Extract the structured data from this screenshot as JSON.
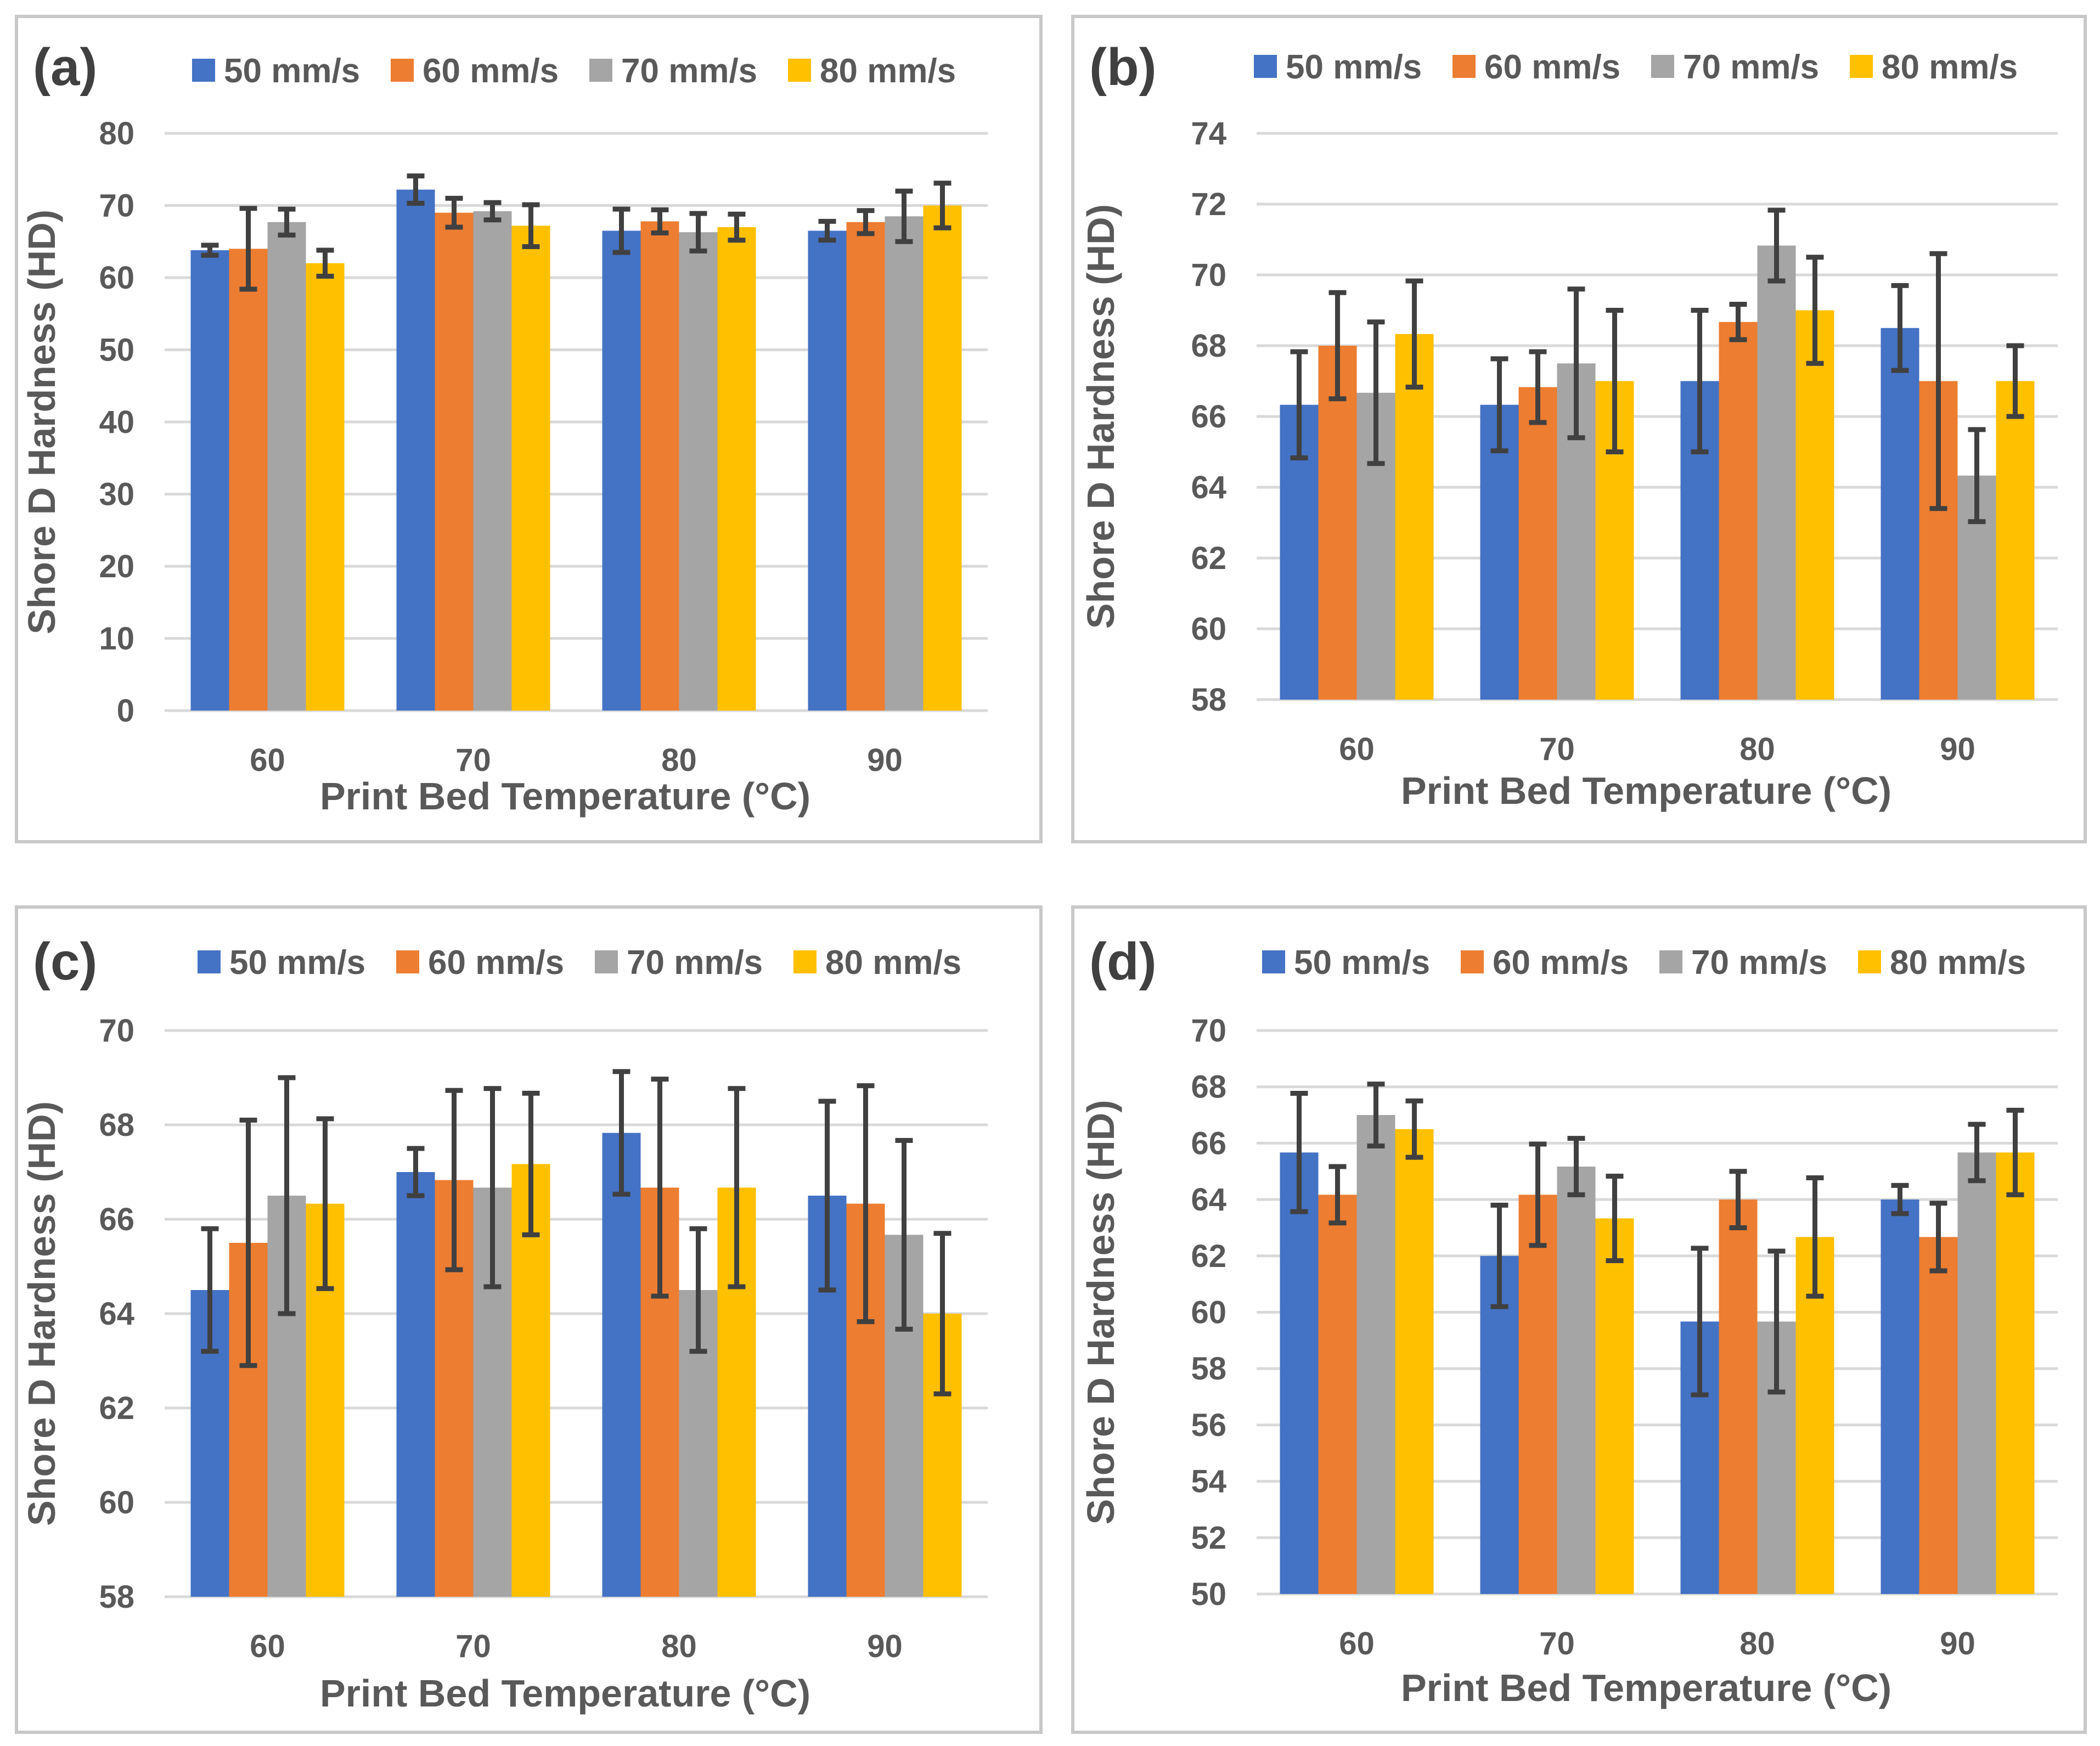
{
  "chart_data": [
    {
      "type": "bar",
      "panel": "(a)",
      "xlabel": "Print Bed Temperature (°C)",
      "ylabel": "Shore D Hardness (HD)",
      "categories": [
        "60",
        "70",
        "80",
        "90"
      ],
      "ylim": [
        0,
        80
      ],
      "yticks": [
        0,
        10,
        20,
        30,
        40,
        50,
        60,
        70,
        80
      ],
      "grid": true,
      "legend": "top",
      "series": [
        {
          "name": "50 mm/s",
          "color": "#4472C4",
          "values": [
            63.8,
            72.2,
            66.5,
            66.5
          ],
          "errors": [
            0.7,
            1.9,
            3.0,
            1.3
          ]
        },
        {
          "name": "60 mm/s",
          "color": "#ED7D31",
          "values": [
            64.0,
            69.0,
            67.8,
            67.7
          ],
          "errors": [
            5.6,
            2.0,
            1.6,
            1.6
          ]
        },
        {
          "name": "70 mm/s",
          "color": "#A5A5A5",
          "values": [
            67.7,
            69.2,
            66.3,
            68.5
          ],
          "errors": [
            1.8,
            1.2,
            2.6,
            3.5
          ]
        },
        {
          "name": "80 mm/s",
          "color": "#FFC000",
          "values": [
            62.0,
            67.2,
            67.0,
            70.0
          ],
          "errors": [
            1.8,
            2.9,
            1.8,
            3.1
          ]
        }
      ]
    },
    {
      "type": "bar",
      "panel": "(b)",
      "xlabel": "Print Bed Temperature (°C)",
      "ylabel": "Shore D Hardness (HD)",
      "categories": [
        "60",
        "70",
        "80",
        "90"
      ],
      "ylim": [
        58,
        74
      ],
      "yticks": [
        58,
        60,
        62,
        64,
        66,
        68,
        70,
        72,
        74
      ],
      "grid": true,
      "legend": "top",
      "series": [
        {
          "name": "50 mm/s",
          "color": "#4472C4",
          "values": [
            66.33,
            66.33,
            67.0,
            68.5
          ],
          "errors": [
            1.5,
            1.3,
            2.0,
            1.2
          ]
        },
        {
          "name": "60 mm/s",
          "color": "#ED7D31",
          "values": [
            68.0,
            66.83,
            68.67,
            67.0
          ],
          "errors": [
            1.5,
            1.0,
            0.5,
            3.6
          ]
        },
        {
          "name": "70 mm/s",
          "color": "#A5A5A5",
          "values": [
            66.67,
            67.5,
            70.83,
            64.33
          ],
          "errors": [
            2.0,
            2.1,
            1.0,
            1.3
          ]
        },
        {
          "name": "80 mm/s",
          "color": "#FFC000",
          "values": [
            68.33,
            67.0,
            69.0,
            67.0
          ],
          "errors": [
            1.5,
            2.0,
            1.5,
            1.0
          ]
        }
      ]
    },
    {
      "type": "bar",
      "panel": "(c)",
      "xlabel": "Print Bed Temperature (°C)",
      "ylabel": "Shore D Hardness (HD)",
      "categories": [
        "60",
        "70",
        "80",
        "90"
      ],
      "ylim": [
        58,
        70
      ],
      "yticks": [
        58,
        60,
        62,
        64,
        66,
        68,
        70
      ],
      "grid": true,
      "legend": "top",
      "series": [
        {
          "name": "50 mm/s",
          "color": "#4472C4",
          "values": [
            64.5,
            67.0,
            67.83,
            66.5
          ],
          "errors": [
            1.3,
            0.5,
            1.3,
            2.0
          ]
        },
        {
          "name": "60 mm/s",
          "color": "#ED7D31",
          "values": [
            65.5,
            66.83,
            66.67,
            66.33
          ],
          "errors": [
            2.6,
            1.9,
            2.3,
            2.5
          ]
        },
        {
          "name": "70 mm/s",
          "color": "#A5A5A5",
          "values": [
            66.5,
            66.67,
            64.5,
            65.67
          ],
          "errors": [
            2.5,
            2.1,
            1.3,
            2.0
          ]
        },
        {
          "name": "80 mm/s",
          "color": "#FFC000",
          "values": [
            66.33,
            67.17,
            66.67,
            64.0
          ],
          "errors": [
            1.8,
            1.5,
            2.1,
            1.7
          ]
        }
      ]
    },
    {
      "type": "bar",
      "panel": "(d)",
      "xlabel": "Print Bed Temperature (°C)",
      "ylabel": "Shore D Hardness (HD)",
      "categories": [
        "60",
        "70",
        "80",
        "90"
      ],
      "ylim": [
        50,
        70
      ],
      "yticks": [
        50,
        52,
        54,
        56,
        58,
        60,
        62,
        64,
        66,
        68,
        70
      ],
      "grid": true,
      "legend": "top",
      "series": [
        {
          "name": "50 mm/s",
          "color": "#4472C4",
          "values": [
            65.67,
            62.0,
            59.67,
            64.0
          ],
          "errors": [
            2.1,
            1.8,
            2.6,
            0.5
          ]
        },
        {
          "name": "60 mm/s",
          "color": "#ED7D31",
          "values": [
            64.17,
            64.17,
            64.0,
            62.67
          ],
          "errors": [
            1.0,
            1.8,
            1.0,
            1.2
          ]
        },
        {
          "name": "70 mm/s",
          "color": "#A5A5A5",
          "values": [
            67.0,
            65.17,
            59.67,
            65.67
          ],
          "errors": [
            1.1,
            1.0,
            2.5,
            1.0
          ]
        },
        {
          "name": "80 mm/s",
          "color": "#FFC000",
          "values": [
            66.5,
            63.33,
            62.67,
            65.67
          ],
          "errors": [
            1.0,
            1.5,
            2.1,
            1.5
          ]
        }
      ]
    }
  ]
}
